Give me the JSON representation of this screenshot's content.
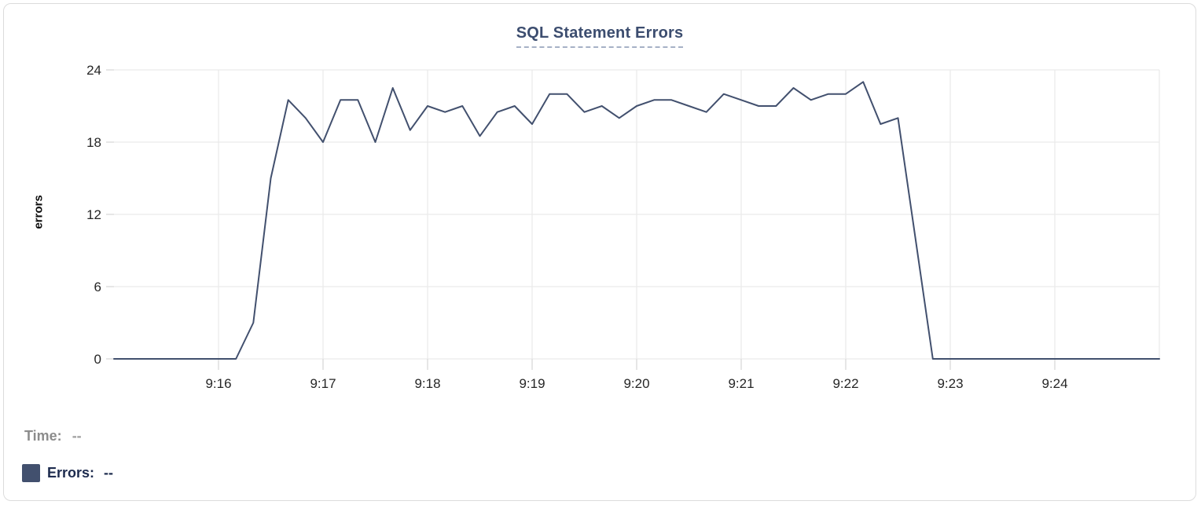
{
  "card": {
    "title": "SQL Statement Errors"
  },
  "chart_data": {
    "type": "line",
    "title": "SQL Statement Errors",
    "xlabel": "",
    "ylabel": "errors",
    "ylim": [
      0,
      24
    ],
    "y_ticks": [
      0,
      6,
      12,
      18,
      24
    ],
    "x_range": [
      "9:15:00",
      "9:25:00"
    ],
    "x_tick_labels": [
      "9:16",
      "9:17",
      "9:18",
      "9:19",
      "9:20",
      "9:21",
      "9:22",
      "9:23",
      "9:24"
    ],
    "grid": true,
    "legend_position": "bottom-left",
    "series": [
      {
        "name": "Errors",
        "color": "#42506e",
        "points": [
          [
            "9:15:00",
            0
          ],
          [
            "9:15:10",
            0
          ],
          [
            "9:15:20",
            0
          ],
          [
            "9:15:30",
            0
          ],
          [
            "9:15:40",
            0
          ],
          [
            "9:15:50",
            0
          ],
          [
            "9:16:00",
            0
          ],
          [
            "9:16:10",
            0
          ],
          [
            "9:16:20",
            3
          ],
          [
            "9:16:30",
            15
          ],
          [
            "9:16:40",
            21.5
          ],
          [
            "9:16:50",
            20
          ],
          [
            "9:17:00",
            18
          ],
          [
            "9:17:10",
            21.5
          ],
          [
            "9:17:20",
            21.5
          ],
          [
            "9:17:30",
            18
          ],
          [
            "9:17:40",
            22.5
          ],
          [
            "9:17:50",
            19
          ],
          [
            "9:18:00",
            21
          ],
          [
            "9:18:10",
            20.5
          ],
          [
            "9:18:20",
            21
          ],
          [
            "9:18:30",
            18.5
          ],
          [
            "9:18:40",
            20.5
          ],
          [
            "9:18:50",
            21
          ],
          [
            "9:19:00",
            19.5
          ],
          [
            "9:19:10",
            22
          ],
          [
            "9:19:20",
            22
          ],
          [
            "9:19:30",
            20.5
          ],
          [
            "9:19:40",
            21
          ],
          [
            "9:19:50",
            20
          ],
          [
            "9:20:00",
            21
          ],
          [
            "9:20:10",
            21.5
          ],
          [
            "9:20:20",
            21.5
          ],
          [
            "9:20:30",
            21
          ],
          [
            "9:20:40",
            20.5
          ],
          [
            "9:20:50",
            22
          ],
          [
            "9:21:00",
            21.5
          ],
          [
            "9:21:10",
            21
          ],
          [
            "9:21:20",
            21
          ],
          [
            "9:21:30",
            22.5
          ],
          [
            "9:21:40",
            21.5
          ],
          [
            "9:21:50",
            22
          ],
          [
            "9:22:00",
            22
          ],
          [
            "9:22:10",
            23
          ],
          [
            "9:22:20",
            19.5
          ],
          [
            "9:22:30",
            20
          ],
          [
            "9:22:40",
            10
          ],
          [
            "9:22:50",
            0
          ],
          [
            "9:23:00",
            0
          ],
          [
            "9:23:10",
            0
          ],
          [
            "9:23:20",
            0
          ],
          [
            "9:23:30",
            0
          ],
          [
            "9:23:40",
            0
          ],
          [
            "9:23:50",
            0
          ],
          [
            "9:24:00",
            0
          ],
          [
            "9:24:10",
            0
          ],
          [
            "9:24:20",
            0
          ],
          [
            "9:24:30",
            0
          ],
          [
            "9:24:40",
            0
          ],
          [
            "9:24:50",
            0
          ],
          [
            "9:25:00",
            0
          ]
        ]
      }
    ]
  },
  "tooltip": {
    "time_label": "Time:",
    "time_value": "--",
    "errors_label": "Errors:",
    "errors_value": "--",
    "swatch_color": "#42506e"
  },
  "colors": {
    "title": "#3c4d6f",
    "title_underline": "#a6b1c6",
    "grid": "#eaeaea",
    "tick": "#d9d9d9",
    "axis_text": "#262626",
    "time_text": "#8c8c8c",
    "errors_text": "#1d2b4e",
    "card_border": "#dcdcdc"
  }
}
